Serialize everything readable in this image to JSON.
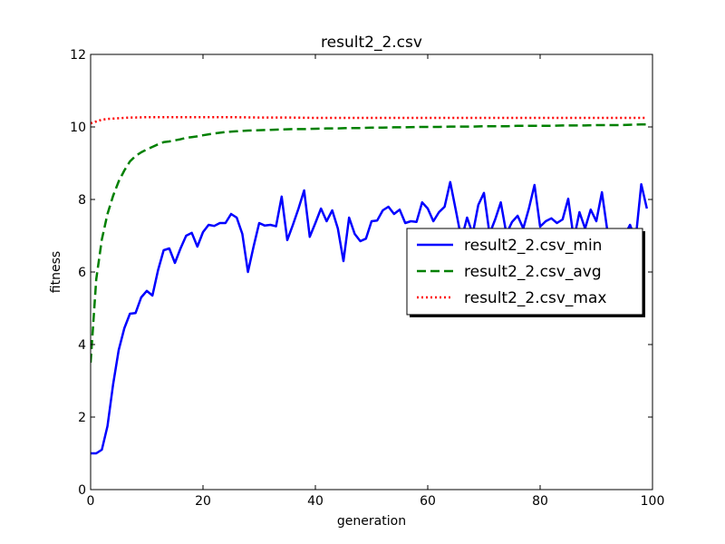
{
  "chart_data": {
    "type": "line",
    "title": "result2_2.csv",
    "xlabel": "generation",
    "ylabel": "fitness",
    "xlim": [
      0,
      100
    ],
    "ylim": [
      0,
      12
    ],
    "xticks": [
      "0",
      "20",
      "40",
      "60",
      "80",
      "100"
    ],
    "yticks": [
      "0",
      "2",
      "4",
      "6",
      "8",
      "10",
      "12"
    ],
    "grid": false,
    "legend_position": "center-right",
    "series": [
      {
        "name": "result2_2.csv_min",
        "color": "#0000ff",
        "style": "solid",
        "x": [
          0,
          1,
          2,
          3,
          4,
          5,
          6,
          7,
          8,
          9,
          10,
          11,
          12,
          13,
          14,
          15,
          16,
          17,
          18,
          19,
          20,
          21,
          22,
          23,
          24,
          25,
          26,
          27,
          28,
          29,
          30,
          31,
          32,
          33,
          34,
          35,
          36,
          37,
          38,
          39,
          40,
          41,
          42,
          43,
          44,
          45,
          46,
          47,
          48,
          49,
          50,
          51,
          52,
          53,
          54,
          55,
          56,
          57,
          58,
          59,
          60,
          61,
          62,
          63,
          64,
          65,
          66,
          67,
          68,
          69,
          70,
          71,
          72,
          73,
          74,
          75,
          76,
          77,
          78,
          79,
          80,
          81,
          82,
          83,
          84,
          85,
          86,
          87,
          88,
          89,
          90,
          91,
          92,
          93,
          94,
          95,
          96,
          97,
          98,
          99
        ],
        "values": [
          1.0,
          1.0,
          1.1,
          1.75,
          2.9,
          3.85,
          4.45,
          4.85,
          4.87,
          5.3,
          5.48,
          5.35,
          6.05,
          6.6,
          6.65,
          6.25,
          6.65,
          7.0,
          7.08,
          6.7,
          7.1,
          7.3,
          7.27,
          7.35,
          7.35,
          7.6,
          7.5,
          7.05,
          6.0,
          6.7,
          7.35,
          7.28,
          7.3,
          7.26,
          8.08,
          6.88,
          7.3,
          7.75,
          8.25,
          6.97,
          7.35,
          7.75,
          7.4,
          7.7,
          7.2,
          6.3,
          7.5,
          7.05,
          6.85,
          6.92,
          7.4,
          7.42,
          7.7,
          7.8,
          7.6,
          7.72,
          7.35,
          7.4,
          7.38,
          7.92,
          7.75,
          7.4,
          7.65,
          7.8,
          8.48,
          7.7,
          6.9,
          7.5,
          7.05,
          7.85,
          8.18,
          7.05,
          7.45,
          7.92,
          7.05,
          7.38,
          7.55,
          7.2,
          7.75,
          8.4,
          7.25,
          7.4,
          7.48,
          7.35,
          7.45,
          8.02,
          6.9,
          7.65,
          7.2,
          7.72,
          7.4,
          8.2,
          7.1,
          7.0,
          6.9,
          7.0,
          7.3,
          6.9,
          8.42,
          7.75
        ]
      },
      {
        "name": "result2_2.csv_avg",
        "color": "#008000",
        "style": "dashed",
        "x": [
          0,
          1,
          2,
          3,
          4,
          5,
          6,
          7,
          8,
          9,
          10,
          11,
          12,
          13,
          14,
          15,
          16,
          17,
          18,
          19,
          20,
          22,
          24,
          26,
          28,
          30,
          32,
          34,
          36,
          38,
          40,
          42,
          44,
          46,
          48,
          50,
          52,
          54,
          56,
          58,
          60,
          62,
          64,
          66,
          68,
          70,
          72,
          74,
          76,
          78,
          80,
          82,
          84,
          86,
          88,
          90,
          92,
          94,
          96,
          98,
          99
        ],
        "values": [
          3.5,
          5.8,
          6.9,
          7.6,
          8.1,
          8.5,
          8.8,
          9.05,
          9.2,
          9.3,
          9.38,
          9.45,
          9.52,
          9.58,
          9.6,
          9.63,
          9.66,
          9.7,
          9.72,
          9.74,
          9.77,
          9.82,
          9.86,
          9.88,
          9.9,
          9.91,
          9.92,
          9.93,
          9.94,
          9.94,
          9.95,
          9.96,
          9.96,
          9.97,
          9.97,
          9.98,
          9.98,
          9.99,
          9.99,
          10.0,
          10.0,
          10.0,
          10.01,
          10.01,
          10.01,
          10.02,
          10.02,
          10.02,
          10.03,
          10.03,
          10.03,
          10.03,
          10.04,
          10.04,
          10.04,
          10.05,
          10.05,
          10.05,
          10.06,
          10.07,
          10.07
        ]
      },
      {
        "name": "result2_2.csv_max",
        "color": "#ff0000",
        "style": "dotted",
        "x": [
          0,
          1,
          2,
          3,
          4,
          5,
          6,
          7,
          8,
          10,
          15,
          20,
          25,
          30,
          35,
          40,
          45,
          50,
          55,
          60,
          65,
          70,
          75,
          80,
          85,
          90,
          95,
          99
        ],
        "values": [
          10.1,
          10.15,
          10.2,
          10.22,
          10.23,
          10.24,
          10.25,
          10.26,
          10.26,
          10.27,
          10.27,
          10.27,
          10.27,
          10.26,
          10.26,
          10.25,
          10.25,
          10.25,
          10.25,
          10.25,
          10.25,
          10.25,
          10.25,
          10.25,
          10.25,
          10.25,
          10.25,
          10.25
        ]
      }
    ]
  }
}
